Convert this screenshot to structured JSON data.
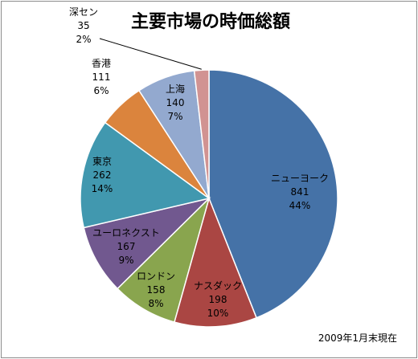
{
  "chart_data": {
    "type": "pie",
    "title": "主要市場の時価総額",
    "note": "2009年1月末現在",
    "slices": [
      {
        "name": "ニューヨーク",
        "value": 841,
        "percent": "44%",
        "color": "#4572a7"
      },
      {
        "name": "ナスダック",
        "value": 198,
        "percent": "10%",
        "color": "#aa4643"
      },
      {
        "name": "ロンドン",
        "value": 158,
        "percent": "8%",
        "color": "#89a54e"
      },
      {
        "name": "ユーロネクスト",
        "value": 167,
        "percent": "9%",
        "color": "#71588f"
      },
      {
        "name": "東京",
        "value": 262,
        "percent": "14%",
        "color": "#4198af"
      },
      {
        "name": "香港",
        "value": 111,
        "percent": "6%",
        "color": "#db843d"
      },
      {
        "name": "上海",
        "value": 140,
        "percent": "7%",
        "color": "#93a9cf"
      },
      {
        "name": "深セン",
        "value": 35,
        "percent": "2%",
        "color": "#d19392"
      }
    ]
  }
}
